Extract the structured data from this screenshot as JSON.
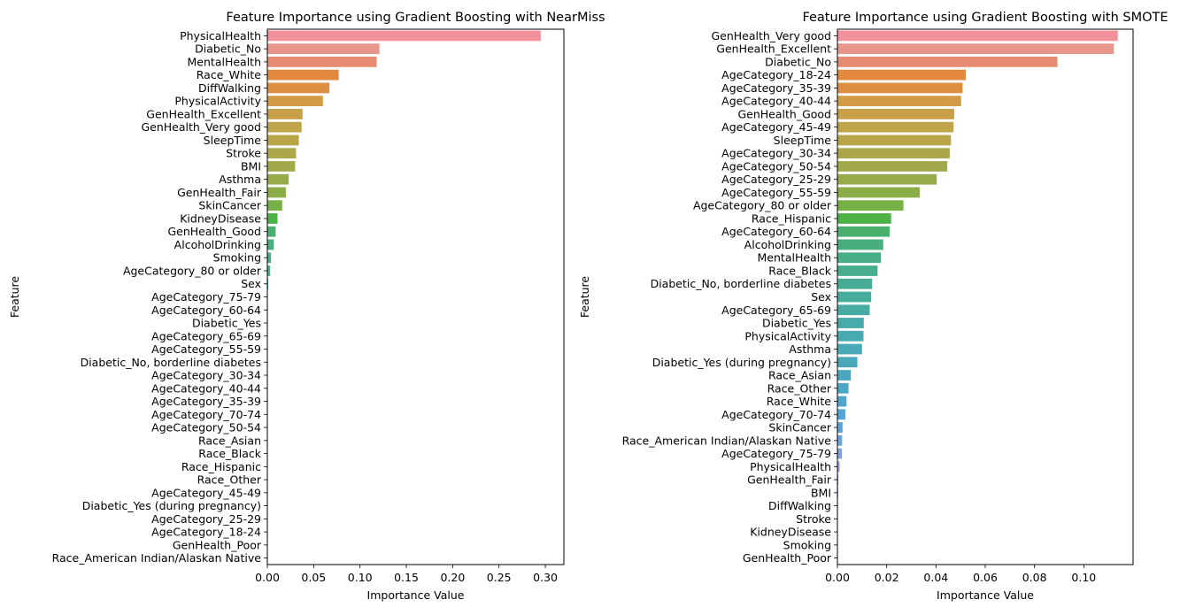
{
  "chart_data": [
    {
      "type": "bar",
      "orientation": "horizontal",
      "title": "Feature Importance using Gradient Boosting with NearMiss",
      "xlabel": "Importance Value",
      "ylabel": "Feature",
      "xlim": [
        0,
        0.32
      ],
      "xticks": [
        "0.00",
        "0.05",
        "0.10",
        "0.15",
        "0.20",
        "0.25",
        "0.30"
      ],
      "xtick_values": [
        0,
        0.05,
        0.1,
        0.15,
        0.2,
        0.25,
        0.3
      ],
      "grid": false,
      "categories": [
        "PhysicalHealth",
        "Diabetic_No",
        "MentalHealth",
        "Race_White",
        "DiffWalking",
        "PhysicalActivity",
        "GenHealth_Excellent",
        "GenHealth_Very good",
        "SleepTime",
        "Stroke",
        "BMI",
        "Asthma",
        "GenHealth_Fair",
        "SkinCancer",
        "KidneyDisease",
        "GenHealth_Good",
        "AlcoholDrinking",
        "Smoking",
        "AgeCategory_80 or older",
        "Sex",
        "AgeCategory_75-79",
        "AgeCategory_60-64",
        "Diabetic_Yes",
        "AgeCategory_65-69",
        "AgeCategory_55-59",
        "Diabetic_No, borderline diabetes",
        "AgeCategory_30-34",
        "AgeCategory_40-44",
        "AgeCategory_35-39",
        "AgeCategory_70-74",
        "AgeCategory_50-54",
        "Race_Asian",
        "Race_Black",
        "Race_Hispanic",
        "Race_Other",
        "AgeCategory_45-49",
        "Diabetic_Yes (during pregnancy)",
        "AgeCategory_25-29",
        "AgeCategory_18-24",
        "GenHealth_Poor",
        "Race_American Indian/Alaskan Native"
      ],
      "values": [
        0.295,
        0.121,
        0.118,
        0.077,
        0.067,
        0.06,
        0.038,
        0.037,
        0.034,
        0.031,
        0.03,
        0.023,
        0.02,
        0.016,
        0.011,
        0.009,
        0.007,
        0.004,
        0.003,
        0.001,
        0.0004,
        0.0003,
        0.0003,
        0.0002,
        0.0002,
        0.0002,
        0.0002,
        0.0001,
        0.0001,
        0.0001,
        0.0001,
        0.0001,
        0.0001,
        0.0001,
        0.0001,
        0.0001,
        0.0001,
        0.0001,
        0.0001,
        0.0001,
        0.0
      ],
      "colors": [
        "#f1919b",
        "#e8958a",
        "#e58c73",
        "#e2883f",
        "#dc8e42",
        "#d39a45",
        "#c99f47",
        "#bfa449",
        "#b8a547",
        "#aca84a",
        "#a2a94a",
        "#98ab49",
        "#8bad47",
        "#76b147",
        "#4cb246",
        "#49b06d",
        "#48ae7c",
        "#48ae85",
        "#47ad8f",
        "#47ac96",
        "#47ac9c",
        "#47aba3",
        "#48aaa9",
        "#49aaaf",
        "#49a9b4",
        "#4aa8ba",
        "#4ba7c0",
        "#4ca6c6",
        "#4ea6ce",
        "#52a4d6",
        "#5ca3dc",
        "#6ea2e0",
        "#83a2e3",
        "#989fe6",
        "#a89be7",
        "#b697e9",
        "#c592e8",
        "#d28ee5",
        "#e08ae0",
        "#e88ad4",
        "#ee89c4"
      ]
    },
    {
      "type": "bar",
      "orientation": "horizontal",
      "title": "Feature Importance using Gradient Boosting with SMOTE",
      "xlabel": "Importance Value",
      "ylabel": "Feature",
      "xlim": [
        0,
        0.12
      ],
      "xticks": [
        "0.00",
        "0.02",
        "0.04",
        "0.06",
        "0.08",
        "0.10"
      ],
      "xtick_values": [
        0,
        0.02,
        0.04,
        0.06,
        0.08,
        0.1
      ],
      "grid": false,
      "categories": [
        "GenHealth_Very good",
        "GenHealth_Excellent",
        "Diabetic_No",
        "AgeCategory_18-24",
        "AgeCategory_35-39",
        "AgeCategory_40-44",
        "GenHealth_Good",
        "AgeCategory_45-49",
        "SleepTime",
        "AgeCategory_30-34",
        "AgeCategory_50-54",
        "AgeCategory_25-29",
        "AgeCategory_55-59",
        "AgeCategory_80 or older",
        "Race_Hispanic",
        "AgeCategory_60-64",
        "AlcoholDrinking",
        "MentalHealth",
        "Race_Black",
        "Diabetic_No, borderline diabetes",
        "Sex",
        "AgeCategory_65-69",
        "Diabetic_Yes",
        "PhysicalActivity",
        "Asthma",
        "Diabetic_Yes (during pregnancy)",
        "Race_Asian",
        "Race_Other",
        "Race_White",
        "AgeCategory_70-74",
        "SkinCancer",
        "Race_American Indian/Alaskan Native",
        "AgeCategory_75-79",
        "PhysicalHealth",
        "GenHealth_Fair",
        "BMI",
        "DiffWalking",
        "Stroke",
        "KidneyDisease",
        "Smoking",
        "GenHealth_Poor"
      ],
      "values": [
        0.1138,
        0.1122,
        0.0893,
        0.0521,
        0.0508,
        0.0502,
        0.0474,
        0.0471,
        0.0461,
        0.0456,
        0.0446,
        0.0403,
        0.0334,
        0.0268,
        0.0218,
        0.0212,
        0.0186,
        0.0176,
        0.0163,
        0.0141,
        0.0137,
        0.0131,
        0.0107,
        0.0106,
        0.01,
        0.0081,
        0.0054,
        0.0045,
        0.0037,
        0.0032,
        0.0021,
        0.0019,
        0.0018,
        0.0009,
        0.0004,
        0.0003,
        0.0002,
        0.0001,
        0.0001,
        0.0001,
        0.0001
      ],
      "colors": [
        "#f1919b",
        "#e8958a",
        "#e58c73",
        "#e2883f",
        "#dc8e42",
        "#d39a45",
        "#c99f47",
        "#bfa449",
        "#b8a547",
        "#aca84a",
        "#a2a94a",
        "#98ab49",
        "#8bad47",
        "#76b147",
        "#4cb246",
        "#49b06d",
        "#48ae7c",
        "#48ae85",
        "#47ad8f",
        "#47ac96",
        "#47ac9c",
        "#47aba3",
        "#48aaa9",
        "#49aaaf",
        "#49a9b4",
        "#4aa8ba",
        "#4ba7c0",
        "#4ca6c6",
        "#4ea6ce",
        "#52a4d6",
        "#5ca3dc",
        "#6ea2e0",
        "#83a2e3",
        "#989fe6",
        "#a89be7",
        "#b697e9",
        "#c592e8",
        "#d28ee5",
        "#e08ae0",
        "#e88ad4",
        "#ee89c4"
      ]
    }
  ]
}
